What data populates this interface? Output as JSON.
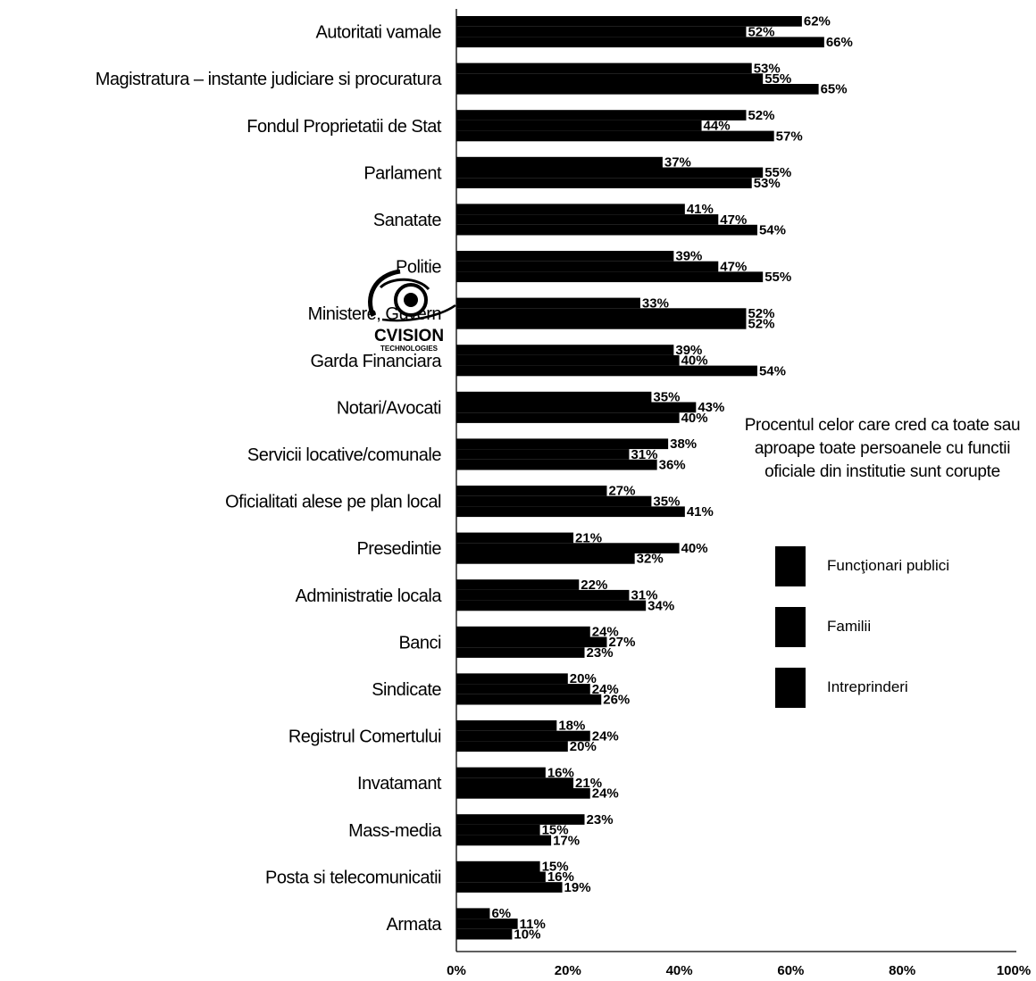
{
  "chart_data": {
    "type": "bar",
    "orientation": "horizontal",
    "categories": [
      "Autoritati vamale",
      "Magistratura – instante judiciare si procuratura",
      "Fondul Proprietatii de Stat",
      "Parlament",
      "Sanatate",
      "Politie",
      "Ministere, Guvern",
      "Garda Financiara",
      "Notari/Avocati",
      "Servicii locative/comunale",
      "Oficialitati alese pe plan local",
      "Presedintie",
      "Administratie locala",
      "Banci",
      "Sindicate",
      "Registrul Comertului",
      "Invatamant",
      "Mass-media",
      "Posta si telecomunicatii",
      "Armata"
    ],
    "series": [
      {
        "name": "Funcţionari publici",
        "values": [
          62,
          53,
          52,
          37,
          41,
          39,
          33,
          39,
          35,
          38,
          27,
          21,
          22,
          24,
          20,
          18,
          16,
          23,
          15,
          6
        ]
      },
      {
        "name": "Familii",
        "values": [
          52,
          55,
          44,
          55,
          47,
          47,
          52,
          40,
          43,
          31,
          35,
          40,
          31,
          27,
          24,
          24,
          21,
          15,
          16,
          11
        ]
      },
      {
        "name": "Intreprinderi",
        "values": [
          66,
          65,
          57,
          53,
          54,
          55,
          52,
          54,
          40,
          36,
          41,
          32,
          34,
          23,
          26,
          20,
          24,
          17,
          19,
          10
        ]
      }
    ],
    "value_suffix": "%",
    "x_ticks": [
      "0%",
      "20%",
      "40%",
      "60%",
      "80%",
      "100%"
    ],
    "xlim": [
      0,
      100
    ],
    "legend_title": "Procentul celor care cred ca toate sau aproape toate persoanele cu functii oficiale din institutie sunt corupte",
    "legend_position": "right",
    "grid": false,
    "bar_color": "#000000"
  },
  "watermark": {
    "name": "CVISION",
    "sub": "TECHNOLOGIES"
  }
}
